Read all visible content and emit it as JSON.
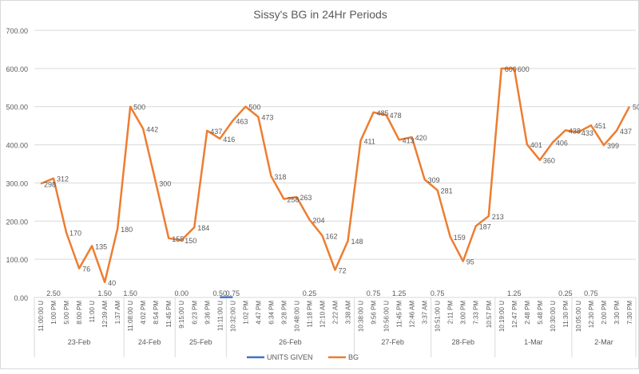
{
  "chart_data": {
    "type": "line",
    "title": "Sissy's BG in 24Hr Periods",
    "xlabel": "",
    "ylabel": "",
    "ylim": [
      0,
      700
    ],
    "yticks": [
      "0.00",
      "100.00",
      "200.00",
      "300.00",
      "400.00",
      "500.00",
      "600.00",
      "700.00"
    ],
    "grid": true,
    "legend": "bottom",
    "groups": [
      {
        "label": "23-Feb",
        "categories": [
          "11:00:00 U",
          "1:00 PM",
          "5:00 PM",
          "8:00 PM",
          "11:00 U",
          "12:39 AM",
          "1:37 AM"
        ]
      },
      {
        "label": "24-Feb",
        "categories": [
          "11:08:00 U",
          "4:02 PM",
          "8:54 PM",
          "11:45 PM"
        ]
      },
      {
        "label": "25-Feb",
        "categories": [
          "9:15:00 U",
          "6:23 PM",
          "9:36 PM",
          "11:11:00 U"
        ]
      },
      {
        "label": "26-Feb",
        "categories": [
          "10:32:00 U",
          "1:02 PM",
          "4:47 PM",
          "6:34 PM",
          "9:28 PM",
          "10:48:00 U",
          "11:18 PM",
          "12:10 AM",
          "2:22 AM",
          "3:38 AM"
        ]
      },
      {
        "label": "27-Feb",
        "categories": [
          "10:38:00 U",
          "9:56 PM",
          "10:56:00 U",
          "11:45 PM",
          "12:46 AM",
          "3:37 AM"
        ]
      },
      {
        "label": "28-Feb",
        "categories": [
          "10:51:00 U",
          "2:11 PM",
          "3:00 PM",
          "7:33 PM",
          "10:57 PM"
        ]
      },
      {
        "label": "1-Mar",
        "categories": [
          "10:19:00 U",
          "12:47 PM",
          "2:48 PM",
          "5:48 PM",
          "10:30:00 U",
          "11:30 PM"
        ]
      },
      {
        "label": "2-Mar",
        "categories": [
          "10:05:00 U",
          "12:30 PM",
          "2:00 PM",
          "3:30 PM",
          "7:30 PM"
        ]
      }
    ],
    "series": [
      {
        "name": "UNITS GIVEN",
        "color": "#4472c4",
        "values": [
          null,
          2.5,
          null,
          null,
          null,
          1.5,
          null,
          1.5,
          null,
          null,
          null,
          0.0,
          null,
          null,
          0.5,
          0.75,
          null,
          null,
          null,
          null,
          null,
          0.25,
          null,
          null,
          null,
          null,
          0.75,
          null,
          1.25,
          null,
          null,
          0.75,
          null,
          null,
          null,
          null,
          null,
          1.25,
          null,
          null,
          null,
          0.25,
          null,
          0.75,
          null,
          null,
          null
        ],
        "labels": [
          null,
          "2.50",
          null,
          null,
          null,
          "1.50",
          null,
          "1.50",
          null,
          null,
          null,
          "0.00",
          null,
          null,
          "0.50",
          "0.75",
          null,
          null,
          null,
          null,
          null,
          "0.25",
          null,
          null,
          null,
          null,
          "0.75",
          null,
          "1.25",
          null,
          null,
          "0.75",
          null,
          null,
          null,
          null,
          null,
          "1.25",
          null,
          null,
          null,
          "0.25",
          null,
          "0.75",
          null,
          null,
          null
        ]
      },
      {
        "name": "BG",
        "color": "#ed7d31",
        "values": [
          298,
          312,
          170,
          76,
          135,
          40,
          180,
          500,
          442,
          300,
          155,
          150,
          184,
          437,
          416,
          463,
          500,
          473,
          318,
          258,
          263,
          204,
          162,
          72,
          148,
          411,
          485,
          478,
          413,
          420,
          309,
          281,
          159,
          95,
          187,
          213,
          600,
          600,
          401,
          360,
          406,
          438,
          433,
          451,
          399,
          437,
          500
        ]
      }
    ]
  }
}
